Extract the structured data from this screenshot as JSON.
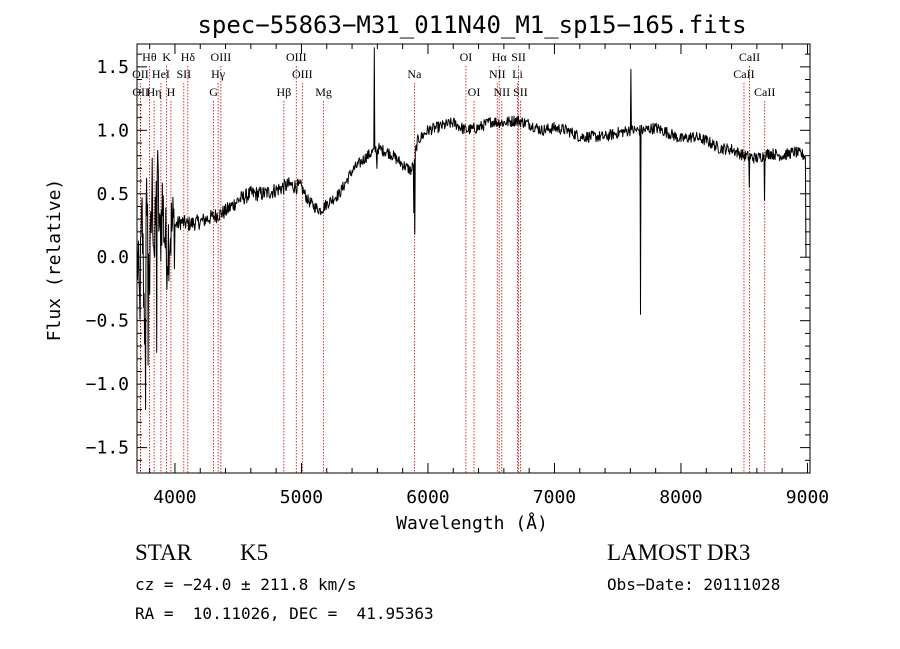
{
  "chart_data": {
    "type": "line",
    "title": "spec−55863−M31_011N40_M1_sp15−165.fits",
    "xlabel": "Wavelength (Å)",
    "ylabel": "Flux (relative)",
    "xlim": [
      3700,
      9020
    ],
    "ylim": [
      -1.7,
      1.68
    ],
    "x_ticks": [
      4000,
      5000,
      6000,
      7000,
      8000,
      9000
    ],
    "x_tick_labels": [
      "4000",
      "5000",
      "6000",
      "7000",
      "8000",
      "9000"
    ],
    "y_ticks": [
      -1.5,
      -1.0,
      -0.5,
      0.0,
      0.5,
      1.0,
      1.5
    ],
    "y_tick_labels": [
      "−1.5",
      "−1.0",
      "−0.5",
      "0.0",
      "0.5",
      "1.0",
      "1.5"
    ],
    "grid": false,
    "line_color": "#000000",
    "marker_color": "#cc0000",
    "anchors": [
      [
        3700,
        0.05
      ],
      [
        3720,
        -0.4
      ],
      [
        3740,
        0.3
      ],
      [
        3760,
        -0.5
      ],
      [
        3780,
        0.6
      ],
      [
        3800,
        -0.2
      ],
      [
        3820,
        0.55
      ],
      [
        3840,
        0.0
      ],
      [
        3860,
        0.7
      ],
      [
        3880,
        0.1
      ],
      [
        3900,
        0.45
      ],
      [
        3930,
        0.05
      ],
      [
        3960,
        0.2
      ],
      [
        4000,
        0.25
      ],
      [
        4050,
        0.28
      ],
      [
        4100,
        0.26
      ],
      [
        4200,
        0.28
      ],
      [
        4300,
        0.32
      ],
      [
        4400,
        0.36
      ],
      [
        4500,
        0.45
      ],
      [
        4600,
        0.5
      ],
      [
        4700,
        0.5
      ],
      [
        4800,
        0.53
      ],
      [
        4900,
        0.57
      ],
      [
        5000,
        0.55
      ],
      [
        5050,
        0.45
      ],
      [
        5100,
        0.4
      ],
      [
        5150,
        0.37
      ],
      [
        5200,
        0.42
      ],
      [
        5300,
        0.5
      ],
      [
        5400,
        0.68
      ],
      [
        5500,
        0.78
      ],
      [
        5600,
        0.86
      ],
      [
        5700,
        0.82
      ],
      [
        5800,
        0.73
      ],
      [
        5870,
        0.68
      ],
      [
        5920,
        0.92
      ],
      [
        6000,
        1.0
      ],
      [
        6100,
        1.03
      ],
      [
        6200,
        1.06
      ],
      [
        6300,
        1.0
      ],
      [
        6400,
        1.02
      ],
      [
        6500,
        1.07
      ],
      [
        6600,
        1.06
      ],
      [
        6700,
        1.08
      ],
      [
        6800,
        1.05
      ],
      [
        6900,
        1.0
      ],
      [
        7000,
        1.02
      ],
      [
        7100,
        1.0
      ],
      [
        7200,
        0.95
      ],
      [
        7300,
        0.95
      ],
      [
        7400,
        0.95
      ],
      [
        7500,
        0.98
      ],
      [
        7600,
        1.0
      ],
      [
        7700,
        1.0
      ],
      [
        7800,
        1.02
      ],
      [
        7900,
        0.98
      ],
      [
        8000,
        0.93
      ],
      [
        8100,
        0.95
      ],
      [
        8200,
        0.92
      ],
      [
        8300,
        0.86
      ],
      [
        8400,
        0.85
      ],
      [
        8500,
        0.8
      ],
      [
        8600,
        0.78
      ],
      [
        8700,
        0.82
      ],
      [
        8800,
        0.8
      ],
      [
        8900,
        0.83
      ],
      [
        8980,
        0.8
      ]
    ],
    "spikes": [
      [
        5577,
        1.65
      ],
      [
        5595,
        0.7
      ],
      [
        5890,
        0.35
      ],
      [
        5896,
        0.18
      ],
      [
        7605,
        1.48
      ],
      [
        7680,
        -0.45
      ],
      [
        3790,
        -0.85
      ],
      [
        3855,
        -0.75
      ],
      [
        3768,
        -1.2
      ],
      [
        3822,
        0.78
      ],
      [
        8542,
        0.55
      ],
      [
        8662,
        0.45
      ],
      [
        9000,
        0.0
      ]
    ],
    "lines": [
      {
        "label": "Hθ",
        "x": 3798,
        "row": 0
      },
      {
        "label": "K",
        "x": 3934,
        "row": 0
      },
      {
        "label": "Hδ",
        "x": 4102,
        "row": 0
      },
      {
        "label": "OIII",
        "x": 4363,
        "row": 0
      },
      {
        "label": "OIII",
        "x": 4959,
        "row": 0
      },
      {
        "label": "OI",
        "x": 6300,
        "row": 0
      },
      {
        "label": "Hα",
        "x": 6563,
        "row": 0
      },
      {
        "label": "SII",
        "x": 6716,
        "row": 0
      },
      {
        "label": "CaII",
        "x": 8542,
        "row": 0
      },
      {
        "label": "OII",
        "x": 3727,
        "row": 1
      },
      {
        "label": "HeI",
        "x": 3889,
        "row": 1
      },
      {
        "label": "SII",
        "x": 4070,
        "row": 1
      },
      {
        "label": "Hγ",
        "x": 4341,
        "row": 1
      },
      {
        "label": "OIII",
        "x": 5007,
        "row": 1
      },
      {
        "label": "Na",
        "x": 5893,
        "row": 1
      },
      {
        "label": "NII",
        "x": 6548,
        "row": 1
      },
      {
        "label": "Li",
        "x": 6708,
        "row": 1
      },
      {
        "label": "CaII",
        "x": 8498,
        "row": 1
      },
      {
        "label": "OII",
        "x": 3729,
        "row": 2
      },
      {
        "label": "Hη",
        "x": 3835,
        "row": 2
      },
      {
        "label": "H",
        "x": 3968,
        "row": 2
      },
      {
        "label": "G",
        "x": 4305,
        "row": 2
      },
      {
        "label": "Hβ",
        "x": 4861,
        "row": 2
      },
      {
        "label": "Mg",
        "x": 5175,
        "row": 2
      },
      {
        "label": "OI",
        "x": 6364,
        "row": 2
      },
      {
        "label": "NII",
        "x": 6584,
        "row": 2
      },
      {
        "label": "SII",
        "x": 6731,
        "row": 2
      },
      {
        "label": "CaII",
        "x": 8662,
        "row": 2
      }
    ]
  },
  "info": {
    "class_label": "STAR",
    "subclass_label": "K5",
    "cz_line": "cz = −24.0 ± 211.8 km/s",
    "coords_line": "RA =  10.11026, DEC =  41.95363",
    "survey_label": "LAMOST DR3",
    "obs_date_line": "Obs−Date: 20111028"
  }
}
